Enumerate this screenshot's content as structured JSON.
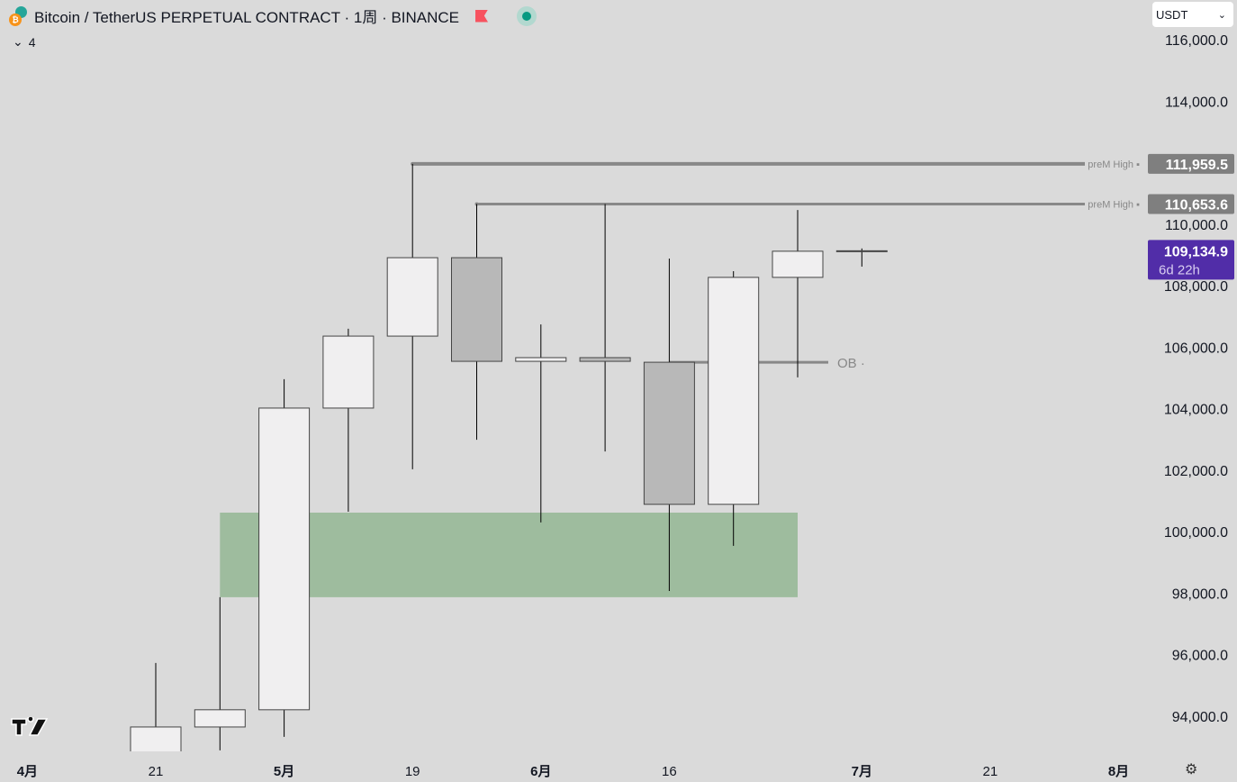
{
  "header": {
    "title": "Bitcoin / TetherUS PERPETUAL CONTRACT · 1周 · BINANCE",
    "coin_icon": "bitcoin-tether-icon",
    "indicators_count": "4",
    "currency": "USDT",
    "market_status": "open"
  },
  "colors": {
    "background": "#dadada",
    "candle_up": "#f0eff0",
    "candle_down": "#b8b8b8",
    "wick": "#000000",
    "zone": "#9ebc9e",
    "level_line": "#888888",
    "last_price_badge": "#512da8"
  },
  "chart_data": {
    "type": "candlestick",
    "title": "Bitcoin / TetherUS PERPETUAL CONTRACT · 1周 · BINANCE",
    "ylim": [
      92800,
      117000
    ],
    "y_ticks": [
      94000,
      96000,
      98000,
      100000,
      102000,
      104000,
      106000,
      108000,
      110000,
      114000,
      116000
    ],
    "y_tick_labels": [
      "94,000.0",
      "96,000.0",
      "98,000.0",
      "100,000.0",
      "102,000.0",
      "104,000.0",
      "106,000.0",
      "108,000.0",
      "110,000.0",
      "114,000.0",
      "116,000.0"
    ],
    "x_ticks": [
      {
        "date": "2025-04-07",
        "label": "4月",
        "bold": true
      },
      {
        "date": "2025-04-21",
        "label": "21",
        "bold": false
      },
      {
        "date": "2025-05-05",
        "label": "5月",
        "bold": true
      },
      {
        "date": "2025-05-19",
        "label": "19",
        "bold": false
      },
      {
        "date": "2025-06-02",
        "label": "6月",
        "bold": true
      },
      {
        "date": "2025-06-16",
        "label": "16",
        "bold": false
      },
      {
        "date": "2025-07-07",
        "label": "7月",
        "bold": true
      },
      {
        "date": "2025-07-21",
        "label": "21",
        "bold": false
      },
      {
        "date": "2025-08-04",
        "label": "8月",
        "bold": true
      }
    ],
    "candles": [
      {
        "date": "2025-04-21",
        "o": 92400,
        "h": 95730,
        "l": 92000,
        "c": 93650
      },
      {
        "date": "2025-04-28",
        "o": 93650,
        "h": 97870,
        "l": 92890,
        "c": 94210
      },
      {
        "date": "2025-05-05",
        "o": 94210,
        "h": 104960,
        "l": 93330,
        "c": 104020
      },
      {
        "date": "2025-05-12",
        "o": 104020,
        "h": 106600,
        "l": 100650,
        "c": 106360
      },
      {
        "date": "2025-05-19",
        "o": 106360,
        "h": 111960,
        "l": 102030,
        "c": 108910
      },
      {
        "date": "2025-05-26",
        "o": 108910,
        "h": 110654,
        "l": 102990,
        "c": 105540
      },
      {
        "date": "2025-06-02",
        "o": 105540,
        "h": 106740,
        "l": 100300,
        "c": 105660
      },
      {
        "date": "2025-06-09",
        "o": 105660,
        "h": 110654,
        "l": 102610,
        "c": 105540
      },
      {
        "date": "2025-06-16",
        "o": 105510,
        "h": 108880,
        "l": 98070,
        "c": 100890
      },
      {
        "date": "2025-06-23",
        "o": 100890,
        "h": 108470,
        "l": 99540,
        "c": 108270
      },
      {
        "date": "2025-06-30",
        "o": 108270,
        "h": 110460,
        "l": 105020,
        "c": 109120
      },
      {
        "date": "2025-07-07",
        "o": 109120,
        "h": 109210,
        "l": 108620,
        "c": 109135
      }
    ],
    "zone": {
      "from": "2025-04-28",
      "to": "2025-06-30",
      "top": 100620,
      "bottom": 97870
    },
    "levels": [
      {
        "label": "preM High",
        "value": 111959.5,
        "value_label": "111,959.5",
        "from": "2025-05-19"
      },
      {
        "label": "preM High",
        "value": 110653.6,
        "value_label": "110,653.6",
        "from": "2025-05-26"
      }
    ],
    "ob": {
      "label": "OB",
      "value": 105510,
      "from": "2025-06-16",
      "to": "2025-06-30"
    },
    "last_price": {
      "value": 109134.9,
      "value_label": "109,134.9",
      "countdown": "6d 22h"
    }
  }
}
